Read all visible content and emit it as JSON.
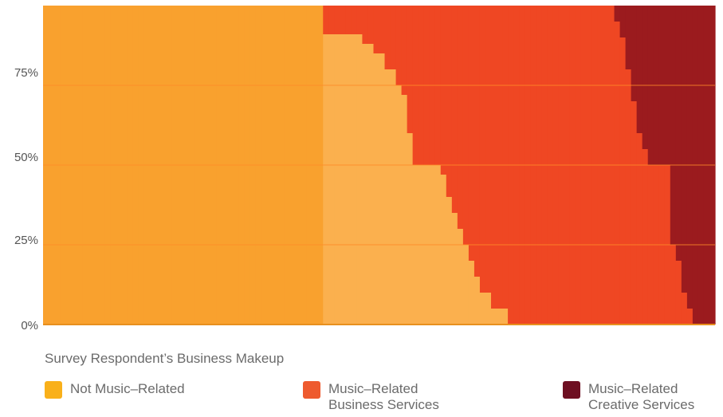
{
  "chart_data": {
    "type": "area",
    "title": "",
    "xlabel": "Survey Respondent’s Business Makeup",
    "ylabel": "",
    "ylim": [
      0,
      100
    ],
    "yticks": [
      "0%",
      "25%",
      "50%",
      "75%"
    ],
    "respondents_count": 120,
    "series": [
      {
        "name": "Not Music–Related",
        "color": "#F9A12E",
        "light_color": "#FBB04E",
        "steps": [
          {
            "to_respondent": 50,
            "value": 100
          },
          {
            "to_respondent": 57,
            "value": 91
          },
          {
            "to_respondent": 59,
            "value": 88
          },
          {
            "to_respondent": 61,
            "value": 85
          },
          {
            "to_respondent": 63,
            "value": 80
          },
          {
            "to_respondent": 64,
            "value": 75
          },
          {
            "to_respondent": 65,
            "value": 72
          },
          {
            "to_respondent": 66,
            "value": 60
          },
          {
            "to_respondent": 71,
            "value": 50
          },
          {
            "to_respondent": 72,
            "value": 47
          },
          {
            "to_respondent": 73,
            "value": 40
          },
          {
            "to_respondent": 74,
            "value": 35
          },
          {
            "to_respondent": 75,
            "value": 30
          },
          {
            "to_respondent": 76,
            "value": 25
          },
          {
            "to_respondent": 77,
            "value": 20
          },
          {
            "to_respondent": 78,
            "value": 15
          },
          {
            "to_respondent": 79,
            "value": 10
          },
          {
            "to_respondent": 80,
            "value": 10
          },
          {
            "to_respondent": 81,
            "value": 5
          },
          {
            "to_respondent": 83,
            "value": 5
          },
          {
            "to_respondent": 120,
            "value": 0
          }
        ]
      },
      {
        "name": "Music–Related Business Services",
        "color": "#EF4723",
        "steps": [
          {
            "to_respondent": 50,
            "value": 0
          },
          {
            "to_respondent": 57,
            "value": 9
          },
          {
            "to_respondent": 59,
            "value": 12
          },
          {
            "to_respondent": 61,
            "value": 15
          },
          {
            "to_respondent": 63,
            "value": 20
          },
          {
            "to_respondent": 64,
            "value": 25
          },
          {
            "to_respondent": 65,
            "value": 28
          },
          {
            "to_respondent": 66,
            "value": 40
          },
          {
            "to_respondent": 71,
            "value": 50
          },
          {
            "to_respondent": 72,
            "value": 53
          },
          {
            "to_respondent": 73,
            "value": 60
          },
          {
            "to_respondent": 74,
            "value": 65
          },
          {
            "to_respondent": 75,
            "value": 70
          },
          {
            "to_respondent": 76,
            "value": 75
          },
          {
            "to_respondent": 77,
            "value": 80
          },
          {
            "to_respondent": 78,
            "value": 85
          },
          {
            "to_respondent": 79,
            "value": 90
          },
          {
            "to_respondent": 80,
            "value": 90
          },
          {
            "to_respondent": 81,
            "value": 95
          },
          {
            "to_respondent": 83,
            "value": 95
          },
          {
            "to_respondent": 91,
            "value": 100
          },
          {
            "to_respondent": 102,
            "value": 100
          },
          {
            "to_respondent": 103,
            "value": 95
          },
          {
            "to_respondent": 104,
            "value": 90
          },
          {
            "to_respondent": 105,
            "value": 80
          },
          {
            "to_respondent": 106,
            "value": 70
          },
          {
            "to_respondent": 107,
            "value": 60
          },
          {
            "to_respondent": 108,
            "value": 55
          },
          {
            "to_respondent": 112,
            "value": 50
          },
          {
            "to_respondent": 113,
            "value": 25
          },
          {
            "to_respondent": 114,
            "value": 20
          },
          {
            "to_respondent": 115,
            "value": 10
          },
          {
            "to_respondent": 116,
            "value": 5
          },
          {
            "to_respondent": 119,
            "value": 0
          },
          {
            "to_respondent": 120,
            "value": 0
          }
        ]
      },
      {
        "name": "Music–Related Creative Services",
        "color": "#9B1B1E",
        "steps": [
          {
            "to_respondent": 102,
            "value": 0
          },
          {
            "to_respondent": 103,
            "value": 5
          },
          {
            "to_respondent": 104,
            "value": 10
          },
          {
            "to_respondent": 105,
            "value": 20
          },
          {
            "to_respondent": 106,
            "value": 30
          },
          {
            "to_respondent": 107,
            "value": 40
          },
          {
            "to_respondent": 108,
            "value": 45
          },
          {
            "to_respondent": 112,
            "value": 50
          },
          {
            "to_respondent": 113,
            "value": 75
          },
          {
            "to_respondent": 114,
            "value": 80
          },
          {
            "to_respondent": 115,
            "value": 90
          },
          {
            "to_respondent": 116,
            "value": 95
          },
          {
            "to_respondent": 120,
            "value": 100
          }
        ]
      }
    ],
    "grid": true,
    "legend_position": "bottom"
  },
  "legend": {
    "items": [
      {
        "line1": "Not Music–Related",
        "line2": "",
        "color": "#F9B01A"
      },
      {
        "line1": "Music–Related",
        "line2": "Business Services",
        "color": "#EE5A2E"
      },
      {
        "line1": "Music–Related",
        "line2": "Creative Services",
        "color": "#6E0F22"
      }
    ]
  }
}
